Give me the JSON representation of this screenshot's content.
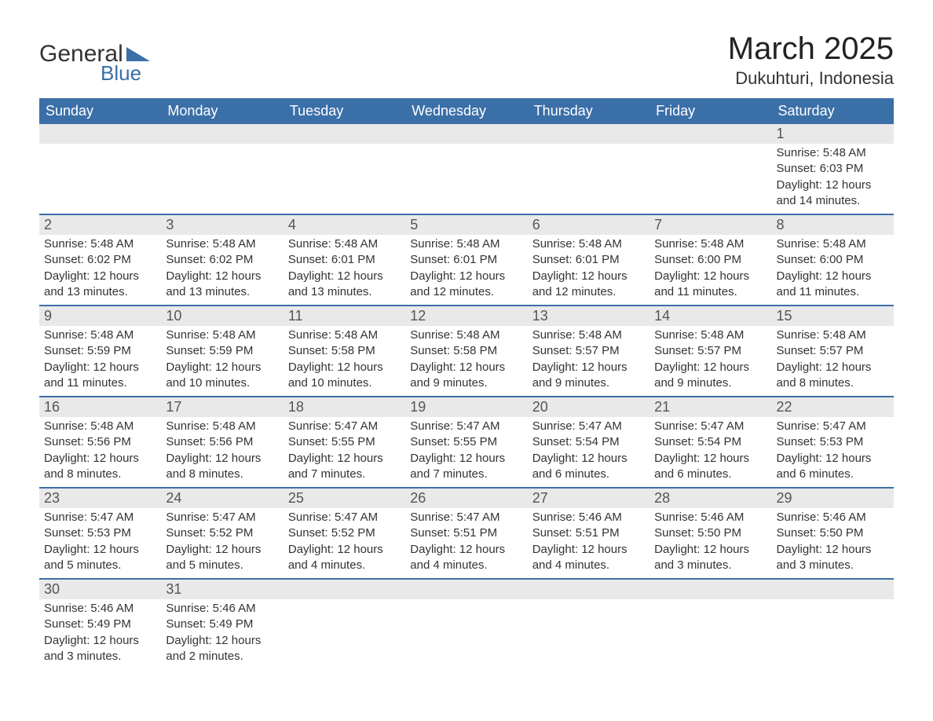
{
  "logo": {
    "text_general": "General",
    "text_blue": "Blue",
    "general_color": "#333333",
    "blue_color": "#3b6fa8"
  },
  "title": "March 2025",
  "location": "Dukuhturi, Indonesia",
  "colors": {
    "header_bg": "#3b6fa8",
    "header_text": "#ffffff",
    "daynum_bg": "#e9e9e9",
    "daynum_text": "#555555",
    "body_text": "#333333",
    "row_border": "#3b6fa8",
    "page_bg": "#ffffff"
  },
  "typography": {
    "title_fontsize": 40,
    "location_fontsize": 22,
    "header_fontsize": 18,
    "daynum_fontsize": 18,
    "cell_fontsize": 15
  },
  "weekdays": [
    "Sunday",
    "Monday",
    "Tuesday",
    "Wednesday",
    "Thursday",
    "Friday",
    "Saturday"
  ],
  "weeks": [
    [
      null,
      null,
      null,
      null,
      null,
      null,
      {
        "n": "1",
        "sunrise": "Sunrise: 5:48 AM",
        "sunset": "Sunset: 6:03 PM",
        "daylight": "Daylight: 12 hours and 14 minutes."
      }
    ],
    [
      {
        "n": "2",
        "sunrise": "Sunrise: 5:48 AM",
        "sunset": "Sunset: 6:02 PM",
        "daylight": "Daylight: 12 hours and 13 minutes."
      },
      {
        "n": "3",
        "sunrise": "Sunrise: 5:48 AM",
        "sunset": "Sunset: 6:02 PM",
        "daylight": "Daylight: 12 hours and 13 minutes."
      },
      {
        "n": "4",
        "sunrise": "Sunrise: 5:48 AM",
        "sunset": "Sunset: 6:01 PM",
        "daylight": "Daylight: 12 hours and 13 minutes."
      },
      {
        "n": "5",
        "sunrise": "Sunrise: 5:48 AM",
        "sunset": "Sunset: 6:01 PM",
        "daylight": "Daylight: 12 hours and 12 minutes."
      },
      {
        "n": "6",
        "sunrise": "Sunrise: 5:48 AM",
        "sunset": "Sunset: 6:01 PM",
        "daylight": "Daylight: 12 hours and 12 minutes."
      },
      {
        "n": "7",
        "sunrise": "Sunrise: 5:48 AM",
        "sunset": "Sunset: 6:00 PM",
        "daylight": "Daylight: 12 hours and 11 minutes."
      },
      {
        "n": "8",
        "sunrise": "Sunrise: 5:48 AM",
        "sunset": "Sunset: 6:00 PM",
        "daylight": "Daylight: 12 hours and 11 minutes."
      }
    ],
    [
      {
        "n": "9",
        "sunrise": "Sunrise: 5:48 AM",
        "sunset": "Sunset: 5:59 PM",
        "daylight": "Daylight: 12 hours and 11 minutes."
      },
      {
        "n": "10",
        "sunrise": "Sunrise: 5:48 AM",
        "sunset": "Sunset: 5:59 PM",
        "daylight": "Daylight: 12 hours and 10 minutes."
      },
      {
        "n": "11",
        "sunrise": "Sunrise: 5:48 AM",
        "sunset": "Sunset: 5:58 PM",
        "daylight": "Daylight: 12 hours and 10 minutes."
      },
      {
        "n": "12",
        "sunrise": "Sunrise: 5:48 AM",
        "sunset": "Sunset: 5:58 PM",
        "daylight": "Daylight: 12 hours and 9 minutes."
      },
      {
        "n": "13",
        "sunrise": "Sunrise: 5:48 AM",
        "sunset": "Sunset: 5:57 PM",
        "daylight": "Daylight: 12 hours and 9 minutes."
      },
      {
        "n": "14",
        "sunrise": "Sunrise: 5:48 AM",
        "sunset": "Sunset: 5:57 PM",
        "daylight": "Daylight: 12 hours and 9 minutes."
      },
      {
        "n": "15",
        "sunrise": "Sunrise: 5:48 AM",
        "sunset": "Sunset: 5:57 PM",
        "daylight": "Daylight: 12 hours and 8 minutes."
      }
    ],
    [
      {
        "n": "16",
        "sunrise": "Sunrise: 5:48 AM",
        "sunset": "Sunset: 5:56 PM",
        "daylight": "Daylight: 12 hours and 8 minutes."
      },
      {
        "n": "17",
        "sunrise": "Sunrise: 5:48 AM",
        "sunset": "Sunset: 5:56 PM",
        "daylight": "Daylight: 12 hours and 8 minutes."
      },
      {
        "n": "18",
        "sunrise": "Sunrise: 5:47 AM",
        "sunset": "Sunset: 5:55 PM",
        "daylight": "Daylight: 12 hours and 7 minutes."
      },
      {
        "n": "19",
        "sunrise": "Sunrise: 5:47 AM",
        "sunset": "Sunset: 5:55 PM",
        "daylight": "Daylight: 12 hours and 7 minutes."
      },
      {
        "n": "20",
        "sunrise": "Sunrise: 5:47 AM",
        "sunset": "Sunset: 5:54 PM",
        "daylight": "Daylight: 12 hours and 6 minutes."
      },
      {
        "n": "21",
        "sunrise": "Sunrise: 5:47 AM",
        "sunset": "Sunset: 5:54 PM",
        "daylight": "Daylight: 12 hours and 6 minutes."
      },
      {
        "n": "22",
        "sunrise": "Sunrise: 5:47 AM",
        "sunset": "Sunset: 5:53 PM",
        "daylight": "Daylight: 12 hours and 6 minutes."
      }
    ],
    [
      {
        "n": "23",
        "sunrise": "Sunrise: 5:47 AM",
        "sunset": "Sunset: 5:53 PM",
        "daylight": "Daylight: 12 hours and 5 minutes."
      },
      {
        "n": "24",
        "sunrise": "Sunrise: 5:47 AM",
        "sunset": "Sunset: 5:52 PM",
        "daylight": "Daylight: 12 hours and 5 minutes."
      },
      {
        "n": "25",
        "sunrise": "Sunrise: 5:47 AM",
        "sunset": "Sunset: 5:52 PM",
        "daylight": "Daylight: 12 hours and 4 minutes."
      },
      {
        "n": "26",
        "sunrise": "Sunrise: 5:47 AM",
        "sunset": "Sunset: 5:51 PM",
        "daylight": "Daylight: 12 hours and 4 minutes."
      },
      {
        "n": "27",
        "sunrise": "Sunrise: 5:46 AM",
        "sunset": "Sunset: 5:51 PM",
        "daylight": "Daylight: 12 hours and 4 minutes."
      },
      {
        "n": "28",
        "sunrise": "Sunrise: 5:46 AM",
        "sunset": "Sunset: 5:50 PM",
        "daylight": "Daylight: 12 hours and 3 minutes."
      },
      {
        "n": "29",
        "sunrise": "Sunrise: 5:46 AM",
        "sunset": "Sunset: 5:50 PM",
        "daylight": "Daylight: 12 hours and 3 minutes."
      }
    ],
    [
      {
        "n": "30",
        "sunrise": "Sunrise: 5:46 AM",
        "sunset": "Sunset: 5:49 PM",
        "daylight": "Daylight: 12 hours and 3 minutes."
      },
      {
        "n": "31",
        "sunrise": "Sunrise: 5:46 AM",
        "sunset": "Sunset: 5:49 PM",
        "daylight": "Daylight: 12 hours and 2 minutes."
      },
      null,
      null,
      null,
      null,
      null
    ]
  ]
}
